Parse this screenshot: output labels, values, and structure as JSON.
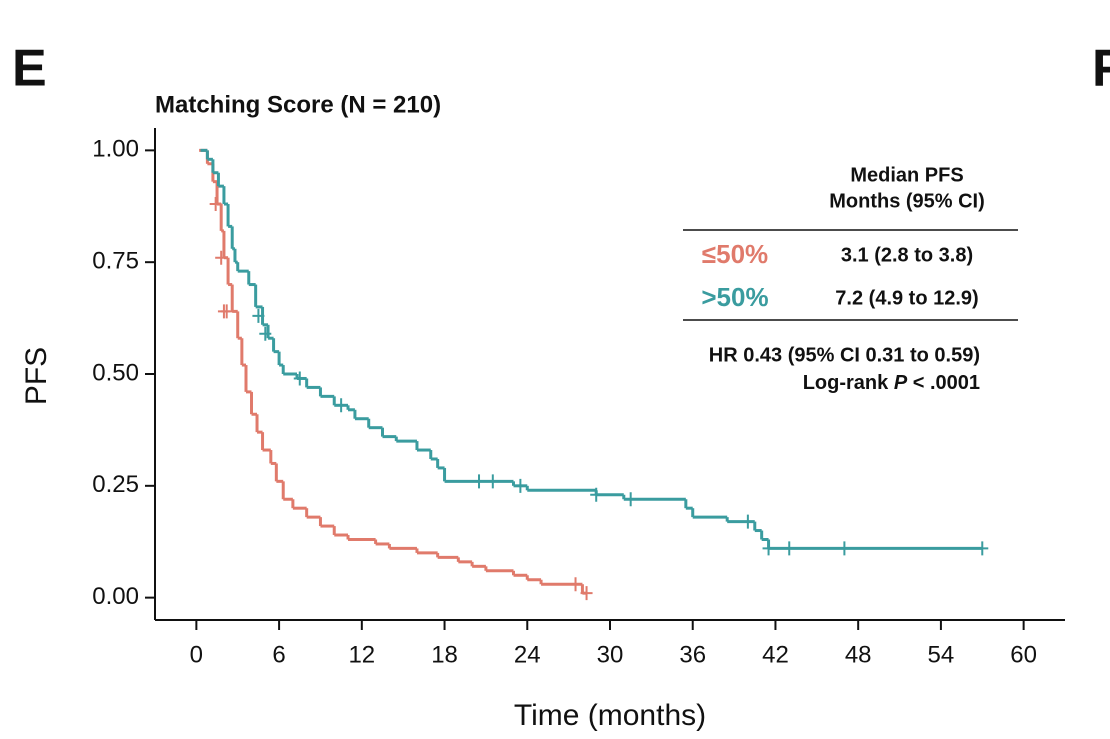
{
  "chart_data": {
    "type": "km",
    "panel_label": "E",
    "next_panel_label": "F",
    "title": "Matching Score (N = 210)",
    "x_label": "Time (months)",
    "y_label": "PFS",
    "xlim": [
      -3,
      63
    ],
    "ylim": [
      -0.05,
      1.05
    ],
    "xticks": [
      0,
      6,
      12,
      18,
      24,
      30,
      36,
      42,
      48,
      54,
      60
    ],
    "yticks": [
      {
        "value": 0,
        "label": "0.00"
      },
      {
        "value": 0.25,
        "label": "0.25"
      },
      {
        "value": 0.5,
        "label": "0.50"
      },
      {
        "value": 0.75,
        "label": "0.75"
      },
      {
        "value": 1,
        "label": "1.00"
      }
    ],
    "table_header": [
      "Median PFS",
      "Months (95% CI)"
    ],
    "annotations": [
      "HR 0.43 (95% CI 0.31 to 0.59)",
      "Log-rank ",
      "P",
      " < .0001"
    ],
    "series": [
      {
        "name": "≤50%",
        "color": "#e07a6b",
        "median_label": "3.1 (2.8 to 3.8)",
        "x": [
          0.2,
          0.8,
          1.2,
          1.5,
          1.8,
          2.0,
          2.3,
          2.6,
          3.0,
          3.3,
          3.6,
          4.0,
          4.4,
          4.8,
          5.4,
          5.8,
          6.3,
          7.0,
          8.0,
          9.0,
          10.0,
          11.0,
          13.0,
          14.0,
          16.0,
          17.5,
          19.0,
          20.0,
          21.0,
          23.0,
          24.0,
          25.0,
          28.0,
          28.3
        ],
        "values": [
          1.0,
          0.97,
          0.93,
          0.88,
          0.82,
          0.76,
          0.7,
          0.64,
          0.58,
          0.52,
          0.46,
          0.41,
          0.37,
          0.33,
          0.3,
          0.26,
          0.22,
          0.2,
          0.18,
          0.16,
          0.14,
          0.13,
          0.12,
          0.11,
          0.1,
          0.09,
          0.08,
          0.07,
          0.06,
          0.05,
          0.04,
          0.03,
          0.01,
          0.01
        ],
        "censored_x": [
          1.4,
          1.8,
          2.0,
          2.2,
          27.5,
          28.3
        ],
        "censored_y": [
          0.88,
          0.76,
          0.64,
          0.64,
          0.03,
          0.01
        ]
      },
      {
        "name": ">50%",
        "color": "#3a9c9f",
        "median_label": "7.2 (4.9 to 12.9)",
        "x": [
          0.3,
          0.8,
          1.2,
          1.6,
          2.0,
          2.3,
          2.6,
          2.8,
          3.0,
          3.8,
          4.3,
          4.8,
          5.2,
          5.6,
          6.0,
          6.3,
          7.3,
          8.0,
          9.0,
          10.0,
          11.0,
          11.5,
          12.5,
          13.5,
          14.5,
          16.0,
          17.0,
          17.5,
          18.0,
          23.0,
          24.0,
          29.0,
          31.0,
          35.5,
          36.0,
          38.5,
          40.5,
          41.0,
          41.5,
          57.0
        ],
        "values": [
          1.0,
          0.98,
          0.95,
          0.92,
          0.88,
          0.83,
          0.78,
          0.75,
          0.73,
          0.7,
          0.65,
          0.61,
          0.58,
          0.55,
          0.52,
          0.5,
          0.49,
          0.47,
          0.45,
          0.43,
          0.42,
          0.4,
          0.38,
          0.36,
          0.35,
          0.33,
          0.31,
          0.29,
          0.26,
          0.25,
          0.24,
          0.23,
          0.22,
          0.2,
          0.18,
          0.17,
          0.15,
          0.13,
          0.11,
          0.11
        ],
        "censored_x": [
          4.5,
          5.0,
          7.5,
          10.5,
          20.5,
          21.5,
          23.5,
          29.0,
          31.5,
          40.0,
          41.5,
          43.0,
          47.0,
          57.0
        ],
        "censored_y": [
          0.63,
          0.59,
          0.49,
          0.43,
          0.26,
          0.26,
          0.25,
          0.23,
          0.22,
          0.17,
          0.11,
          0.11,
          0.11,
          0.11
        ]
      }
    ]
  }
}
